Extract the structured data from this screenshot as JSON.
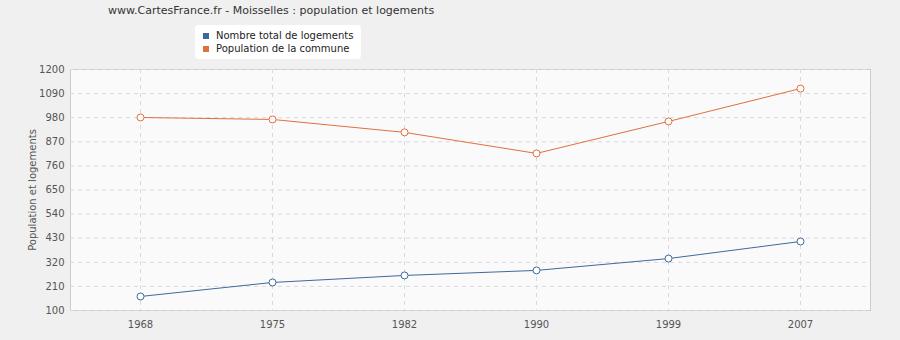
{
  "chart_data": {
    "type": "line",
    "title": "www.CartesFrance.fr - Moisselles : population et logements",
    "y_label": "Population et logements",
    "categories": [
      "1968",
      "1975",
      "1982",
      "1990",
      "1999",
      "2007"
    ],
    "series": [
      {
        "name": "Nombre total de logements",
        "color": "#3d6a99",
        "marker": "circle",
        "values": [
          164,
          228,
          260,
          283,
          337,
          415
        ]
      },
      {
        "name": "Population de la commune",
        "color": "#e0703e",
        "marker": "circle",
        "values": [
          981,
          972,
          913,
          817,
          963,
          1113
        ]
      }
    ],
    "ylim": [
      100,
      1200
    ],
    "yticks": [
      100,
      210,
      320,
      430,
      540,
      650,
      760,
      870,
      980,
      1090,
      1200
    ],
    "grid": true,
    "legend": "top"
  }
}
